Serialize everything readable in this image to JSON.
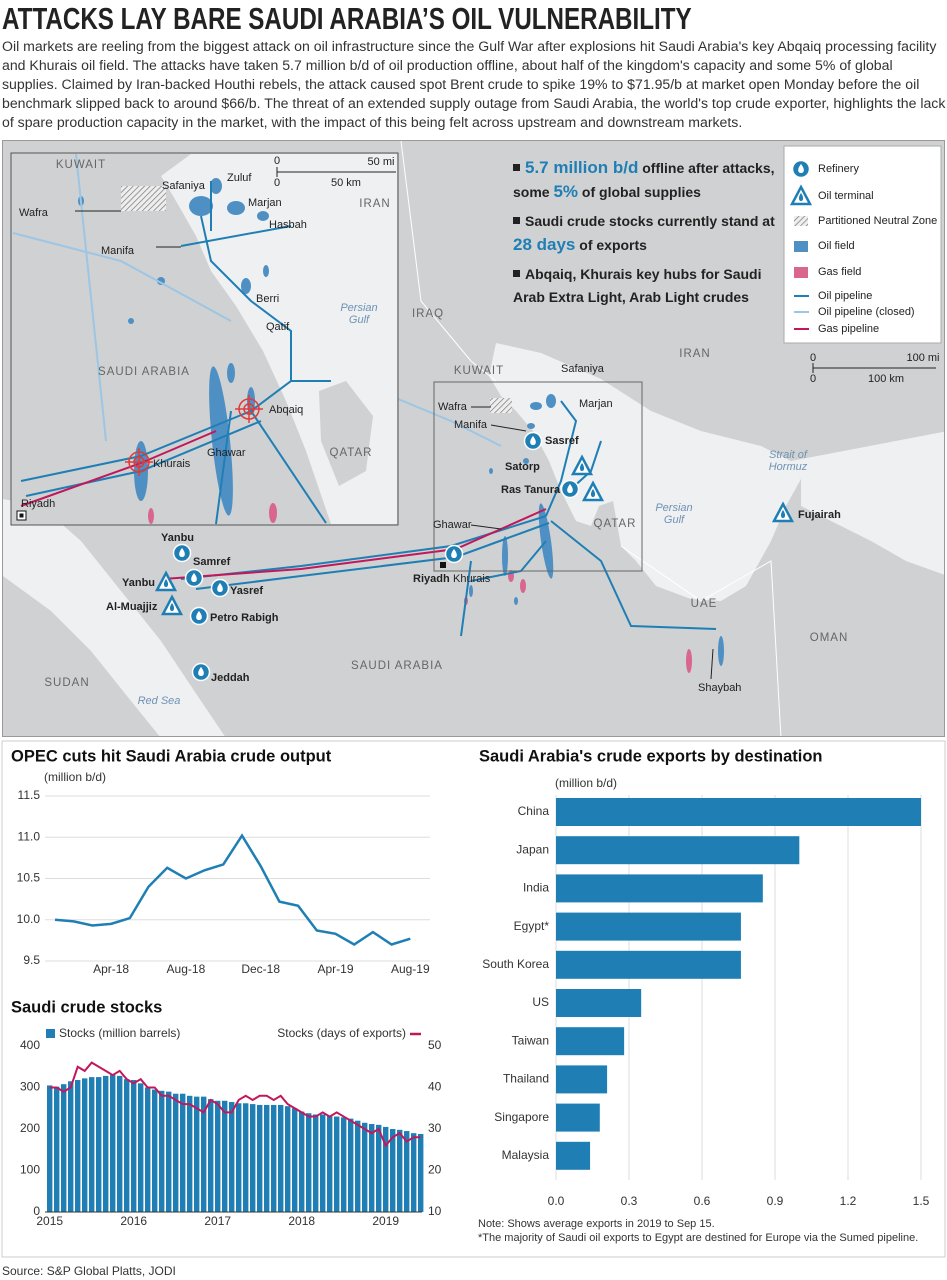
{
  "header": {
    "title": "ATTACKS LAY BARE SAUDI ARABIA’S OIL VULNERABILITY",
    "intro": "Oil markets are reeling from the biggest attack on oil infrastructure since the Gulf War after explosions hit Saudi Arabia's key Abqaiq processing facility and Khurais oil field. The attacks have taken 5.7 million b/d of oil production offline, about half of the kingdom's capacity and some 5% of global supplies. Claimed by Iran-backed Houthi rebels, the attack caused spot Brent crude to spike 19% to $71.95/b at market open Monday before the oil benchmark slipped back to around $66/b. The threat of an extended supply outage from Saudi Arabia, the world's top crude exporter, highlights the lack of spare production capacity in the market, with the impact of this being felt across upstream and downstream markets."
  },
  "map": {
    "regions": [
      "IRAQ",
      "IRAN",
      "KUWAIT",
      "QATAR",
      "UAE",
      "OMAN",
      "SAUDI ARABIA",
      "SUDAN"
    ],
    "waters": [
      "Persian Gulf",
      "Strait of Hormuz",
      "Red Sea"
    ],
    "sites": [
      "Safaniya",
      "Marjan",
      "Wafra",
      "Manifa",
      "Sasref",
      "Satorp",
      "Ras Tanura",
      "Ghawar",
      "Khurais",
      "Riyadh",
      "Yanbu",
      "Samref",
      "Yasref",
      "Yanbu",
      "Al-Muajjiz",
      "Petro Rabigh",
      "Jeddah",
      "Fujairah",
      "Shaybah"
    ],
    "scale": [
      "0",
      "100 mi",
      "0",
      "100 km"
    ],
    "inset": {
      "regions": [
        "KUWAIT",
        "IRAN",
        "SAUDI ARABIA",
        "QATAR"
      ],
      "waters": [
        "Persian Gulf"
      ],
      "sites": [
        "Safaniya",
        "Zuluf",
        "Marjan",
        "Hasbah",
        "Wafra",
        "Manifa",
        "Berri",
        "Qatif",
        "Abqaiq",
        "Ghawar",
        "Khurais",
        "Riyadh"
      ],
      "scale": [
        "0",
        "50 mi",
        "0",
        "50 km"
      ]
    },
    "legend": [
      "Refinery",
      "Oil terminal",
      "Partitioned Neutral Zone",
      "Oil field",
      "Gas field",
      "Oil pipeline",
      "Oil pipeline (closed)",
      "Gas pipeline"
    ],
    "highlights": [
      [
        "5.7 million b/d",
        " offline after attacks, some ",
        "5%",
        " of global supplies"
      ],
      [
        "Saudi crude stocks currently stand at ",
        "28 days",
        " of exports"
      ],
      [
        "Abqaiq, Khurais key hubs for Saudi Arab Extra Light, Arab Light crudes"
      ]
    ]
  },
  "chart_data": [
    {
      "type": "line",
      "title": "OPEC cuts hit Saudi Arabia crude output",
      "ylabel": "(million b/d)",
      "categories": [
        null,
        null,
        null,
        "Apr-18",
        null,
        null,
        null,
        "Aug-18",
        null,
        null,
        null,
        "Dec-18",
        null,
        null,
        null,
        "Apr-19",
        null,
        null,
        null,
        "Aug-19"
      ],
      "values": [
        10.0,
        9.98,
        9.93,
        9.95,
        10.02,
        10.4,
        10.63,
        10.5,
        10.6,
        10.67,
        11.02,
        10.65,
        10.22,
        10.17,
        9.87,
        9.83,
        9.7,
        9.85,
        9.7,
        9.77
      ],
      "color": "#1f7fb5",
      "ylim": [
        9.5,
        11.5
      ],
      "yticks": [
        9.5,
        {
          "value": 10,
          "label": "10.0"
        },
        10.5,
        {
          "value": 11,
          "label": "11.0"
        },
        11.5
      ],
      "grid": true
    },
    {
      "type": "combo",
      "title": "Saudi crude stocks",
      "categories": [
        "2015",
        null,
        null,
        null,
        null,
        null,
        null,
        null,
        null,
        null,
        null,
        null,
        "2016",
        null,
        null,
        null,
        null,
        null,
        null,
        null,
        null,
        null,
        null,
        null,
        "2017",
        null,
        null,
        null,
        null,
        null,
        null,
        null,
        null,
        null,
        null,
        null,
        "2018",
        null,
        null,
        null,
        null,
        null,
        null,
        null,
        null,
        null,
        null,
        null,
        "2019",
        null,
        null,
        null,
        null,
        null
      ],
      "series": [
        {
          "name": "Stocks (million barrels)",
          "color": "#1f7fb5",
          "values": [
            305,
            302,
            308,
            315,
            318,
            322,
            325,
            325,
            328,
            330,
            328,
            320,
            318,
            310,
            300,
            295,
            292,
            290,
            285,
            285,
            280,
            278,
            278,
            272,
            268,
            268,
            265,
            262,
            262,
            260,
            258,
            258,
            258,
            258,
            255,
            250,
            242,
            238,
            235,
            235,
            232,
            230,
            228,
            225,
            220,
            215,
            212,
            210,
            205,
            200,
            198,
            195,
            190,
            188
          ]
        },
        {
          "name": "Stocks (days of exports)",
          "color": "#c2185b",
          "axis": "y2",
          "values": [
            40,
            40,
            39,
            40,
            45,
            44,
            46,
            45,
            44,
            43,
            44,
            42,
            41,
            42,
            40,
            40,
            38,
            38,
            37,
            36,
            36,
            35,
            34,
            37,
            36,
            34,
            34,
            37,
            38,
            37,
            38,
            38,
            37,
            38,
            36,
            35,
            34,
            33,
            33,
            34,
            33,
            34,
            33,
            32,
            31,
            30,
            29,
            30,
            26,
            28,
            29,
            27,
            28,
            28
          ]
        }
      ],
      "ylim": [
        0,
        400
      ],
      "yticks": [
        0,
        100,
        200,
        300,
        400
      ],
      "y2lim": [
        10,
        50
      ],
      "y2ticks": [
        10,
        20,
        30,
        40,
        50
      ],
      "grid": false
    },
    {
      "type": "barh",
      "title": "Saudi Arabia's crude exports by destination",
      "xlabel": "(million b/d)",
      "categories": [
        "China",
        "Japan",
        "India",
        "Egypt*",
        "South Korea",
        "US",
        "Taiwan",
        "Thailand",
        "Singapore",
        "Malaysia"
      ],
      "values": [
        1.5,
        1.0,
        0.85,
        0.76,
        0.76,
        0.35,
        0.28,
        0.21,
        0.18,
        0.14
      ],
      "color": "#1f7fb5",
      "xlim": [
        0,
        1.5
      ],
      "xticks": [
        {
          "value": 0,
          "label": "0.0"
        },
        0.3,
        0.6,
        0.9,
        1.2,
        1.5
      ],
      "grid": true,
      "notes": [
        "Note: Shows average exports in 2019 to Sep 15.",
        "*The majority of Saudi oil exports to Egypt are destined for Europe via the Sumed pipeline."
      ]
    }
  ],
  "source": "Source: S&P Global Platts, JODI"
}
